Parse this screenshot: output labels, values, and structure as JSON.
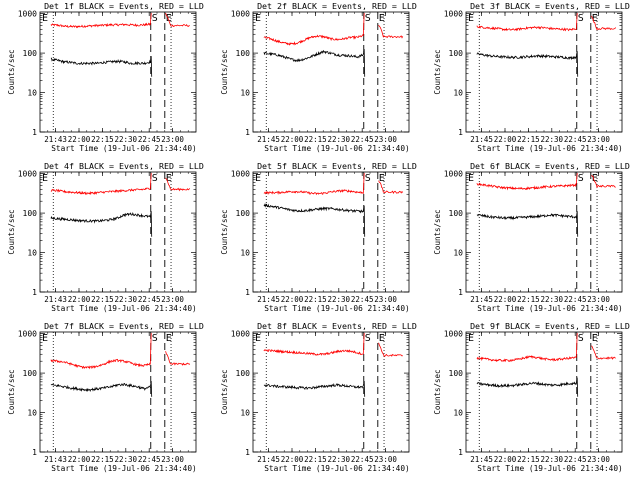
{
  "chart_data": {
    "type": "line",
    "shared": {
      "ylabel": "Counts/sec",
      "xlabel": "Start Time (19-Jul-06 21:34:40)",
      "ytick_labels": [
        "1",
        "10",
        "100",
        "1000"
      ],
      "ytick_values": [
        1,
        10,
        100,
        1000
      ],
      "ylim": [
        1,
        1100
      ],
      "xlim": [
        0,
        100
      ],
      "x_units": "minutes from start",
      "xtick_labels": [
        "21:45",
        "22:00",
        "22:15",
        "22:30",
        "22:45",
        "23:00"
      ],
      "xtick_values": [
        10,
        25,
        40,
        55,
        70,
        85
      ],
      "marker_S": {
        "label": "S",
        "x": 71
      },
      "marker_E": {
        "label": "E",
        "x": 80
      },
      "dotted_lines_x": [
        8.5,
        84
      ],
      "series_names": [
        "Events",
        "LLD"
      ],
      "colors": {
        "Events": "#000000",
        "LLD": "#ff0000"
      }
    },
    "panels": [
      {
        "title": "Det 1f BLACK = Events, RED = LLD",
        "xtick_labels": [
          "21:43",
          "22:00",
          "22:15",
          "22:30",
          "22:45",
          "23:00"
        ],
        "red_profile": [
          520,
          510,
          480,
          470,
          470,
          480,
          490,
          500,
          510,
          520,
          520,
          530,
          520,
          510,
          520,
          540
        ],
        "black_profile": [
          70,
          65,
          60,
          58,
          55,
          55,
          55,
          55,
          58,
          60,
          62,
          60,
          55,
          56,
          55,
          60
        ],
        "red_end": 500,
        "black_end": 55
      },
      {
        "title": "Det 2f BLACK = Events, RED = LLD",
        "xtick_labels": [
          "21:45",
          "22:00",
          "22:15",
          "22:30",
          "22:45",
          "23:00"
        ],
        "red_profile": [
          250,
          230,
          200,
          180,
          170,
          180,
          210,
          250,
          270,
          260,
          230,
          220,
          230,
          250,
          250,
          280
        ],
        "black_profile": [
          100,
          95,
          90,
          80,
          70,
          65,
          70,
          80,
          95,
          110,
          100,
          90,
          88,
          85,
          80,
          90
        ],
        "red_end": 260,
        "black_end": 90
      },
      {
        "title": "Det 3f BLACK = Events, RED = LLD",
        "xtick_labels": [
          "21:45",
          "22:00",
          "22:15",
          "22:30",
          "22:45",
          "23:00"
        ],
        "red_profile": [
          470,
          450,
          430,
          420,
          400,
          390,
          400,
          420,
          440,
          450,
          440,
          420,
          410,
          400,
          390,
          420
        ],
        "black_profile": [
          95,
          90,
          85,
          82,
          80,
          78,
          78,
          80,
          82,
          85,
          84,
          82,
          80,
          78,
          75,
          80
        ],
        "red_end": 420,
        "black_end": 80
      },
      {
        "title": "Det 4f BLACK = Events, RED = LLD",
        "xtick_labels": [
          "21:43",
          "22:00",
          "22:15",
          "22:30",
          "22:45",
          "23:00"
        ],
        "red_profile": [
          380,
          370,
          350,
          340,
          330,
          320,
          320,
          330,
          340,
          350,
          360,
          370,
          380,
          390,
          400,
          430
        ],
        "black_profile": [
          75,
          72,
          70,
          68,
          65,
          64,
          63,
          63,
          65,
          68,
          75,
          90,
          95,
          90,
          85,
          80
        ],
        "red_end": 400,
        "black_end": 75
      },
      {
        "title": "Det 5f BLACK = Events, RED = LLD",
        "xtick_labels": [
          "21:45",
          "22:00",
          "22:15",
          "22:30",
          "22:45",
          "23:00"
        ],
        "red_profile": [
          330,
          330,
          330,
          340,
          350,
          350,
          340,
          320,
          310,
          320,
          340,
          360,
          370,
          360,
          340,
          330
        ],
        "black_profile": [
          160,
          150,
          140,
          130,
          120,
          115,
          115,
          120,
          125,
          130,
          130,
          125,
          120,
          115,
          112,
          110
        ],
        "red_end": 340,
        "black_end": 110
      },
      {
        "title": "Det 6f BLACK = Events, RED = LLD",
        "xtick_labels": [
          "21:45",
          "22:00",
          "22:15",
          "22:30",
          "22:45",
          "23:00"
        ],
        "red_profile": [
          550,
          520,
          490,
          460,
          440,
          430,
          420,
          420,
          430,
          440,
          460,
          470,
          480,
          490,
          500,
          520
        ],
        "black_profile": [
          90,
          85,
          80,
          78,
          75,
          75,
          76,
          78,
          80,
          82,
          85,
          90,
          88,
          85,
          82,
          80
        ],
        "red_end": 480,
        "black_end": 80
      },
      {
        "title": "Det 7f BLACK = Events, RED = LLD",
        "xtick_labels": [
          "21:43",
          "22:00",
          "22:15",
          "22:30",
          "22:45",
          "23:00"
        ],
        "red_profile": [
          210,
          200,
          190,
          170,
          150,
          140,
          140,
          150,
          170,
          200,
          210,
          200,
          180,
          160,
          155,
          170
        ],
        "black_profile": [
          50,
          48,
          45,
          42,
          40,
          38,
          38,
          40,
          42,
          45,
          50,
          52,
          48,
          45,
          40,
          45
        ],
        "red_end": 170,
        "black_end": 45
      },
      {
        "title": "Det 8f BLACK = Events, RED = LLD",
        "xtick_labels": [
          "21:45",
          "22:00",
          "22:15",
          "22:30",
          "22:45",
          "23:00"
        ],
        "red_profile": [
          380,
          370,
          360,
          350,
          340,
          330,
          320,
          310,
          300,
          300,
          320,
          350,
          370,
          360,
          330,
          300
        ],
        "black_profile": [
          50,
          48,
          46,
          45,
          44,
          43,
          42,
          42,
          44,
          46,
          48,
          50,
          48,
          46,
          44,
          45
        ],
        "red_end": 280,
        "black_end": 45
      },
      {
        "title": "Det 9f BLACK = Events, RED = LLD",
        "xtick_labels": [
          "21:45",
          "22:00",
          "22:15",
          "22:30",
          "22:45",
          "23:00"
        ],
        "red_profile": [
          240,
          230,
          220,
          210,
          210,
          210,
          220,
          240,
          260,
          250,
          230,
          220,
          220,
          230,
          240,
          250
        ],
        "black_profile": [
          55,
          52,
          50,
          48,
          48,
          48,
          50,
          52,
          55,
          55,
          52,
          50,
          50,
          52,
          55,
          55
        ],
        "red_end": 240,
        "black_end": 55
      }
    ]
  }
}
